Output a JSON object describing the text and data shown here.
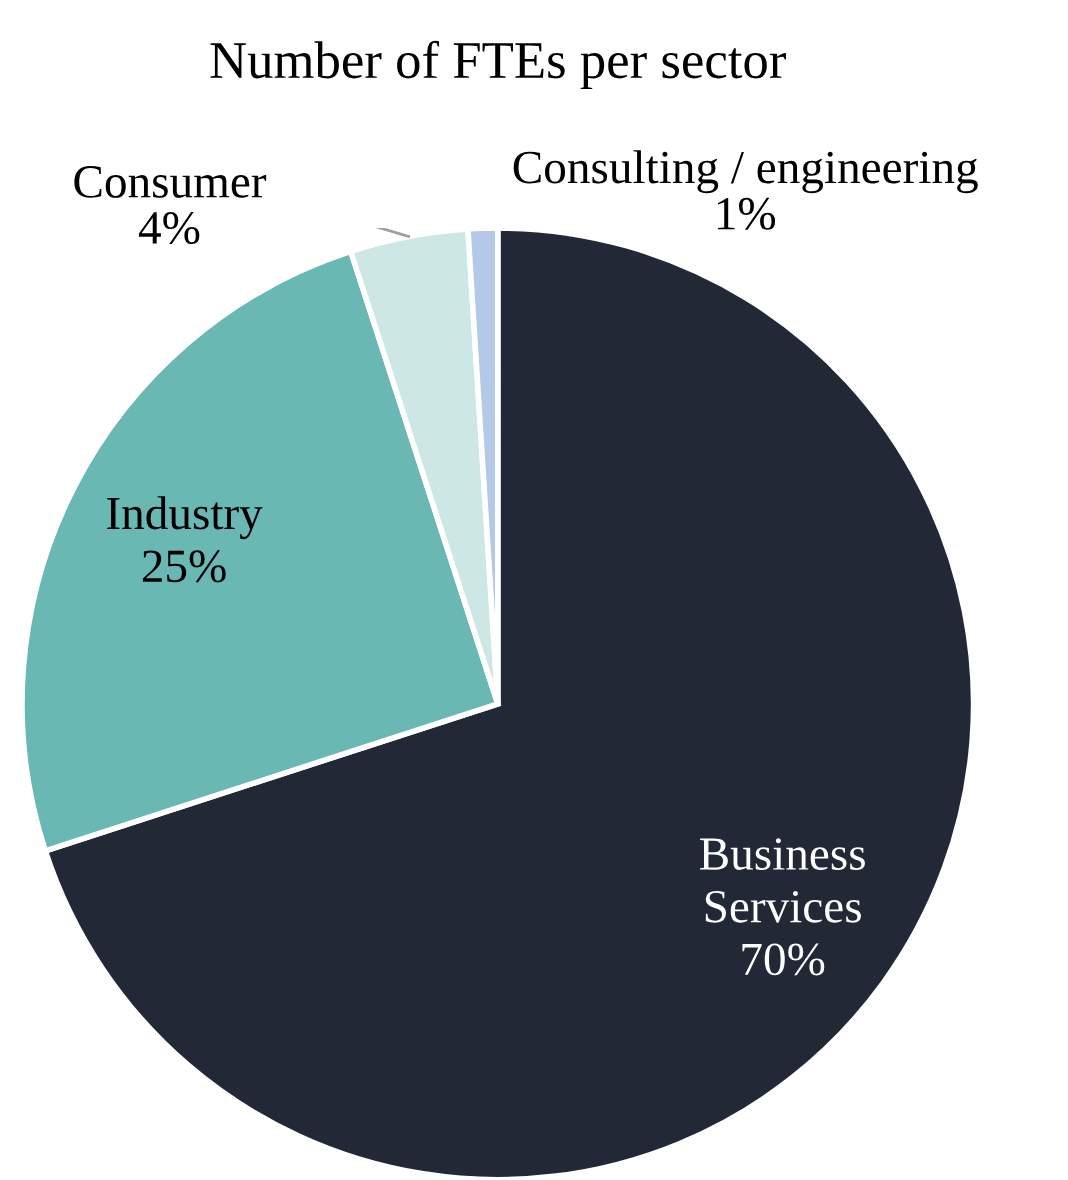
{
  "chart_data": {
    "type": "pie",
    "title": "Number of FTEs per sector",
    "categories": [
      "Business\nServices",
      "Industry",
      "Consumer",
      "Consulting / engineering"
    ],
    "values": [
      70,
      25,
      4,
      1
    ],
    "value_labels": [
      "70%",
      "25%",
      "4%",
      "1%"
    ],
    "colors": [
      "#232837",
      "#6ab8b4",
      "#cde7e5",
      "#b4c8e8"
    ],
    "legend": false
  }
}
